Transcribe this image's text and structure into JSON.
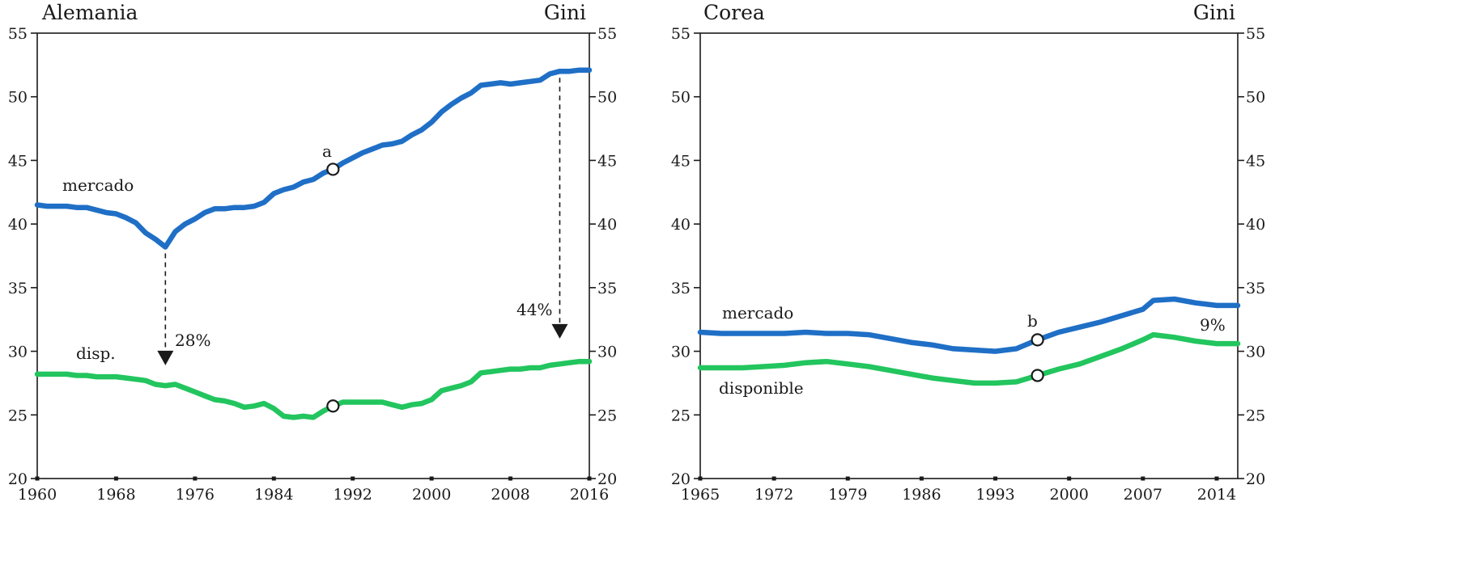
{
  "colors": {
    "mercado": "#1f6fc6",
    "disponible": "#22c55e",
    "axis": "#1a1a1a"
  },
  "chart_data": [
    {
      "type": "line",
      "title": "Alemania",
      "right_axis_title": "Gini",
      "xlim": [
        1960,
        2016
      ],
      "ylim": [
        20,
        55
      ],
      "yticks": [
        20,
        25,
        30,
        35,
        40,
        45,
        50,
        55
      ],
      "xticks": [
        1960,
        1968,
        1976,
        1984,
        1992,
        2000,
        2008,
        2016
      ],
      "grid": false,
      "series": [
        {
          "name": "mercado",
          "color_key": "mercado",
          "x": [
            1960,
            1961,
            1962,
            1963,
            1964,
            1965,
            1966,
            1967,
            1968,
            1969,
            1970,
            1971,
            1972,
            1973,
            1974,
            1975,
            1976,
            1977,
            1978,
            1979,
            1980,
            1981,
            1982,
            1983,
            1984,
            1985,
            1986,
            1987,
            1988,
            1989,
            1990,
            1991,
            1992,
            1993,
            1994,
            1995,
            1996,
            1997,
            1998,
            1999,
            2000,
            2001,
            2002,
            2003,
            2004,
            2005,
            2006,
            2007,
            2008,
            2009,
            2010,
            2011,
            2012,
            2013,
            2014,
            2015,
            2016
          ],
          "y": [
            41.5,
            41.4,
            41.4,
            41.4,
            41.3,
            41.3,
            41.1,
            40.9,
            40.8,
            40.5,
            40.1,
            39.3,
            38.8,
            38.2,
            39.4,
            40.0,
            40.4,
            40.9,
            41.2,
            41.2,
            41.3,
            41.3,
            41.4,
            41.7,
            42.4,
            42.7,
            42.9,
            43.3,
            43.5,
            44.0,
            44.3,
            44.8,
            45.2,
            45.6,
            45.9,
            46.2,
            46.3,
            46.5,
            47.0,
            47.4,
            48.0,
            48.8,
            49.4,
            49.9,
            50.3,
            50.9,
            51.0,
            51.1,
            51.0,
            51.1,
            51.2,
            51.3,
            51.8,
            52.0,
            52.0,
            52.1,
            52.1
          ]
        },
        {
          "name": "disp.",
          "color_key": "disponible",
          "x": [
            1960,
            1961,
            1962,
            1963,
            1964,
            1965,
            1966,
            1967,
            1968,
            1969,
            1970,
            1971,
            1972,
            1973,
            1974,
            1975,
            1976,
            1977,
            1978,
            1979,
            1980,
            1981,
            1982,
            1983,
            1984,
            1985,
            1986,
            1987,
            1988,
            1989,
            1990,
            1991,
            1992,
            1993,
            1994,
            1995,
            1996,
            1997,
            1998,
            1999,
            2000,
            2001,
            2002,
            2003,
            2004,
            2005,
            2006,
            2007,
            2008,
            2009,
            2010,
            2011,
            2012,
            2013,
            2014,
            2015,
            2016
          ],
          "y": [
            28.2,
            28.2,
            28.2,
            28.2,
            28.1,
            28.1,
            28.0,
            28.0,
            28.0,
            27.9,
            27.8,
            27.7,
            27.4,
            27.3,
            27.4,
            27.1,
            26.8,
            26.5,
            26.2,
            26.1,
            25.9,
            25.6,
            25.7,
            25.9,
            25.5,
            24.9,
            24.8,
            24.9,
            24.8,
            25.3,
            25.7,
            26.0,
            26.0,
            26.0,
            26.0,
            26.0,
            25.8,
            25.6,
            25.8,
            25.9,
            26.2,
            26.9,
            27.1,
            27.3,
            27.6,
            28.3,
            28.4,
            28.5,
            28.6,
            28.6,
            28.7,
            28.7,
            28.9,
            29.0,
            29.1,
            29.2,
            29.2
          ]
        }
      ],
      "annotations": {
        "market_label": "mercado",
        "disp_label": "disp.",
        "point_label": "a",
        "point_x": 1990,
        "arrow_left_x": 1973,
        "arrow_left_pct": "28%",
        "arrow_right_x": 2013,
        "arrow_right_pct": "44%"
      }
    },
    {
      "type": "line",
      "title": "Corea",
      "right_axis_title": "Gini",
      "xlim": [
        1965,
        2016
      ],
      "ylim": [
        20,
        55
      ],
      "yticks": [
        20,
        25,
        30,
        35,
        40,
        45,
        50,
        55
      ],
      "xticks": [
        1965,
        1972,
        1979,
        1986,
        1993,
        2000,
        2007,
        2014
      ],
      "grid": false,
      "series": [
        {
          "name": "mercado",
          "color_key": "mercado",
          "x": [
            1965,
            1967,
            1969,
            1971,
            1973,
            1975,
            1977,
            1979,
            1981,
            1983,
            1985,
            1987,
            1989,
            1991,
            1993,
            1995,
            1997,
            1999,
            2001,
            2003,
            2005,
            2007,
            2008,
            2010,
            2012,
            2014,
            2016
          ],
          "y": [
            31.5,
            31.4,
            31.4,
            31.4,
            31.4,
            31.5,
            31.4,
            31.4,
            31.3,
            31.0,
            30.7,
            30.5,
            30.2,
            30.1,
            30.0,
            30.2,
            30.9,
            31.5,
            31.9,
            32.3,
            32.8,
            33.3,
            34.0,
            34.1,
            33.8,
            33.6,
            33.6
          ]
        },
        {
          "name": "disponible",
          "color_key": "disponible",
          "x": [
            1965,
            1967,
            1969,
            1971,
            1973,
            1975,
            1977,
            1979,
            1981,
            1983,
            1985,
            1987,
            1989,
            1991,
            1993,
            1995,
            1997,
            1999,
            2001,
            2003,
            2005,
            2007,
            2008,
            2010,
            2012,
            2014,
            2016
          ],
          "y": [
            28.7,
            28.7,
            28.7,
            28.8,
            28.9,
            29.1,
            29.2,
            29.0,
            28.8,
            28.5,
            28.2,
            27.9,
            27.7,
            27.5,
            27.5,
            27.6,
            28.1,
            28.6,
            29.0,
            29.6,
            30.2,
            30.9,
            31.3,
            31.1,
            30.8,
            30.6,
            30.6
          ]
        }
      ],
      "annotations": {
        "market_label": "mercado",
        "disp_label": "disponible",
        "point_label": "b",
        "point_x": 1997,
        "pct_label": "9%"
      }
    }
  ]
}
